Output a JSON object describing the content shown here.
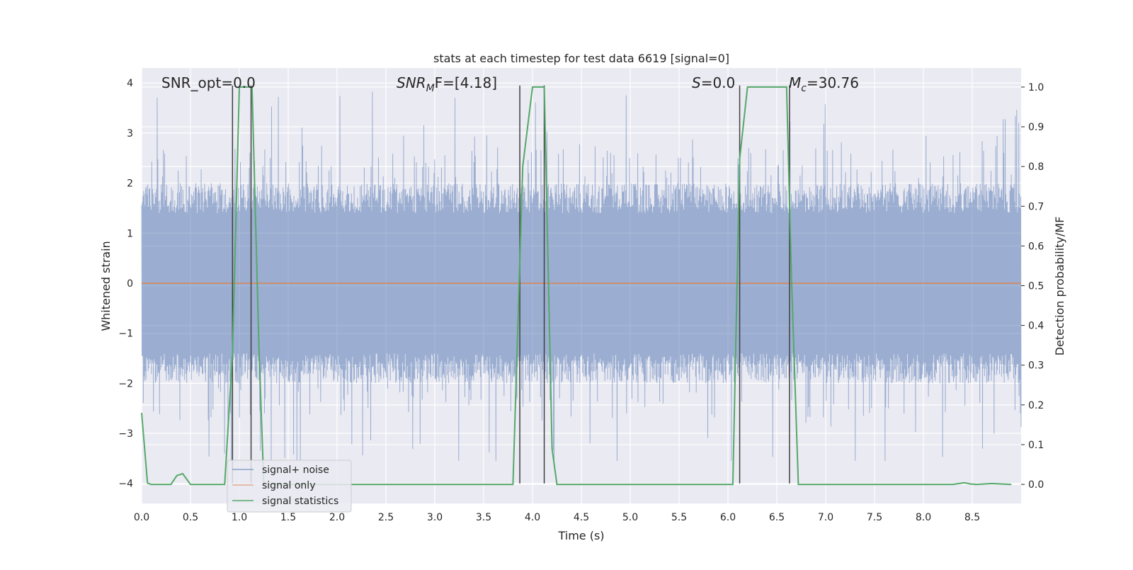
{
  "chart_data": {
    "type": "line",
    "title": "stats at each timestep for test data 6619 [signal=0]",
    "xlabel": "Time (s)",
    "ylabel_left": "Whitened strain",
    "ylabel_right": "Detection probability/MF",
    "xlim": [
      0.0,
      9.0
    ],
    "ylim_left": [
      -4.4,
      4.3
    ],
    "ylim_right": [
      -0.048,
      1.048
    ],
    "x_ticks": [
      "0.0",
      "0.5",
      "1.0",
      "1.5",
      "2.0",
      "2.5",
      "3.0",
      "3.5",
      "4.0",
      "4.5",
      "5.0",
      "5.5",
      "6.0",
      "6.5",
      "7.0",
      "7.5",
      "8.0",
      "8.5"
    ],
    "y_ticks_left": [
      "4",
      "3",
      "2",
      "1",
      "0",
      "−1",
      "−2",
      "−3",
      "−4"
    ],
    "y_ticks_right": [
      "1.0",
      "0.9",
      "0.8",
      "0.7",
      "0.6",
      "0.5",
      "0.4",
      "0.3",
      "0.2",
      "0.1",
      "0.0"
    ],
    "grid": true,
    "legend_position": "lower-left",
    "colors": {
      "background": "#eaeaf2",
      "grid": "#ffffff",
      "noise": "#4c72b0",
      "signal": "#dd8452",
      "statistics": "#55a868",
      "vlines": "#404040"
    },
    "series": [
      {
        "name": "signal+ noise",
        "description_axis": "left",
        "noise_envelope": {
          "typical_abs": [
            1.4,
            2.0
          ],
          "peak_max": 3.85,
          "peak_min": -3.55
        }
      },
      {
        "name": "signal only",
        "axis": "left",
        "x": [
          0.0,
          9.0
        ],
        "y": [
          0.0,
          0.0
        ]
      },
      {
        "name": "signal statistics",
        "axis": "right",
        "x": [
          0.0,
          0.06,
          0.1,
          0.2,
          0.3,
          0.36,
          0.42,
          0.5,
          0.85,
          0.93,
          1.0,
          1.13,
          1.2,
          1.25,
          3.8,
          3.9,
          4.0,
          4.12,
          4.2,
          4.25,
          6.05,
          6.12,
          6.2,
          6.6,
          6.65,
          6.72,
          8.3,
          8.42,
          8.48,
          8.55,
          8.7,
          8.9
        ],
        "y": [
          0.18,
          0.003,
          0.0,
          0.0,
          0.0,
          0.022,
          0.027,
          0.0,
          0.0,
          0.33,
          1.0,
          1.0,
          0.35,
          0.0,
          0.0,
          0.8,
          1.0,
          1.0,
          0.09,
          0.0,
          0.0,
          0.82,
          1.0,
          1.0,
          0.52,
          0.0,
          0.0,
          0.004,
          0.001,
          0.0,
          0.002,
          0.0
        ]
      }
    ],
    "vertical_lines_x": [
      0.93,
      1.12,
      3.87,
      4.12,
      6.12,
      6.63
    ],
    "annotations": {
      "snr_opt": "SNR_opt=0.0",
      "snr_mf": "SNR",
      "snr_mf_sub": "M",
      "snr_mf_rest": "F=[4.18]",
      "s_label": "S",
      "s_value": "=0.0",
      "mc_label": "M",
      "mc_sub": "c",
      "mc_value": "=30.76"
    },
    "legend": [
      "signal+ noise",
      "signal only",
      "signal statistics"
    ]
  }
}
